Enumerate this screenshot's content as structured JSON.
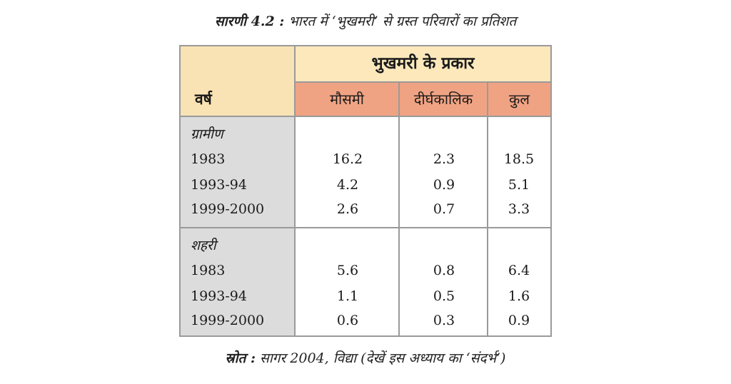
{
  "caption": {
    "label": "सारणी 4.2 :",
    "text": "भारत में ‘भुखमरी’ से ग्रस्त परिवारों का प्रतिशत"
  },
  "table": {
    "year_header": "वर्ष",
    "group_header": "भुखमरी के प्रकार",
    "columns": [
      "मौसमी",
      "दीर्घकालिक",
      "कुल"
    ],
    "sections": [
      {
        "label": "ग्रामीण",
        "rows": [
          {
            "year": "1983",
            "values": [
              "16.2",
              "2.3",
              "18.5"
            ]
          },
          {
            "year": "1993-94",
            "values": [
              "4.2",
              "0.9",
              "5.1"
            ]
          },
          {
            "year": "1999-2000",
            "values": [
              "2.6",
              "0.7",
              "3.3"
            ]
          }
        ]
      },
      {
        "label": "शहरी",
        "rows": [
          {
            "year": "1983",
            "values": [
              "5.6",
              "0.8",
              "6.4"
            ]
          },
          {
            "year": "1993-94",
            "values": [
              "1.1",
              "0.5",
              "1.6"
            ]
          },
          {
            "year": "1999-2000",
            "values": [
              "0.6",
              "0.3",
              "0.9"
            ]
          }
        ]
      }
    ]
  },
  "source": {
    "label": "स्रोत :",
    "text": "सागर 2004, विद्या (देखें इस अध्याय का ‘संदर्भ’)"
  },
  "colors": {
    "header_cream": "#fde8bc",
    "header_salmon": "#f0a383",
    "rowhead_gray": "#dcdcdc",
    "border": "#9a9a9a"
  }
}
